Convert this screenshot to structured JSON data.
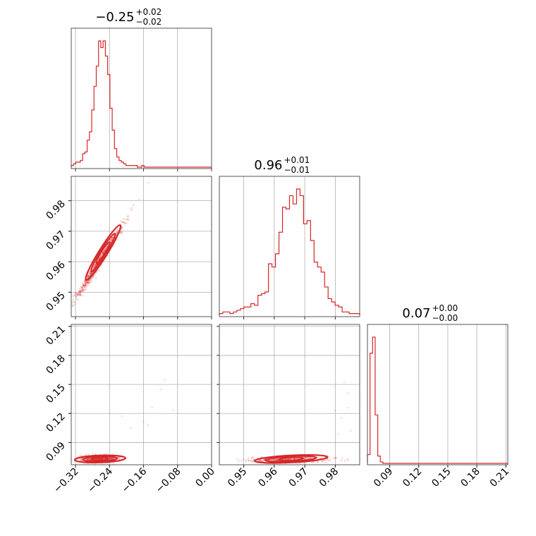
{
  "chart_data": {
    "type": "corner",
    "color": "#d62728",
    "parameters": [
      {
        "median": "−0.25",
        "plus": "+0.02",
        "minus": "−0.02",
        "lim": [
          -0.33,
          0.0
        ],
        "ticks": [
          -0.32,
          -0.24,
          -0.16,
          -0.08,
          0.0
        ],
        "tick_labels": [
          "−0.32",
          "−0.24",
          "−0.16",
          "−0.08",
          "0.00"
        ]
      },
      {
        "median": "0.96",
        "plus": "+0.01",
        "minus": "−0.01",
        "lim": [
          0.942,
          0.988
        ],
        "ticks": [
          0.95,
          0.96,
          0.97,
          0.98
        ],
        "tick_labels": [
          "0.95",
          "0.96",
          "0.97",
          "0.98"
        ]
      },
      {
        "median": "0.07",
        "plus": "+0.00",
        "minus": "−0.00",
        "lim": [
          0.067,
          0.212
        ],
        "ticks": [
          0.09,
          0.12,
          0.15,
          0.18,
          0.21
        ],
        "tick_labels": [
          "0.09",
          "0.12",
          "0.15",
          "0.18",
          "0.21"
        ]
      }
    ],
    "histograms": [
      {
        "param": 0,
        "bins": [
          -0.33,
          -0.0625
        ],
        "counts": [
          1,
          2,
          3,
          3,
          4,
          8,
          9,
          16,
          21,
          34,
          48,
          60,
          75,
          71,
          75,
          66,
          55,
          35,
          22,
          11,
          6,
          4,
          3,
          2,
          1,
          1,
          1,
          1,
          1,
          0,
          0,
          1,
          0,
          0,
          0,
          0,
          0,
          0,
          0,
          0,
          0,
          0,
          0,
          0,
          0,
          0,
          0,
          0,
          0,
          0
        ]
      },
      {
        "param": 1,
        "bins": [
          0.942,
          0.988
        ],
        "counts": [
          1,
          2,
          2,
          1,
          2,
          3,
          4,
          5,
          5,
          7,
          6,
          12,
          13,
          14,
          31,
          29,
          37,
          50,
          65,
          64,
          72,
          67,
          76,
          72,
          55,
          57,
          45,
          32,
          29,
          26,
          17,
          10,
          8,
          6,
          5,
          2,
          2,
          1,
          1,
          1
        ]
      },
      {
        "param": 2,
        "bins": [
          0.067,
          0.2
        ],
        "counts": [
          6,
          75,
          86,
          33,
          5,
          1,
          0,
          0,
          0,
          0,
          0,
          0,
          0,
          0,
          0,
          0,
          0,
          0,
          0,
          0,
          0,
          0,
          0,
          0,
          0,
          0,
          0,
          0,
          0,
          0,
          0,
          0,
          0,
          0,
          0,
          0,
          0,
          0,
          0,
          0,
          0,
          0,
          0,
          0,
          0,
          0,
          0,
          0,
          0,
          0
        ]
      }
    ],
    "scatter_outliers": {
      "p0_p2": [
        [
          -0.21,
          0.117
        ],
        [
          -0.16,
          0.111
        ],
        [
          -0.15,
          0.108
        ],
        [
          -0.11,
          0.155
        ],
        [
          -0.09,
          0.123
        ],
        [
          -0.14,
          0.126
        ],
        [
          -0.19,
          0.105
        ],
        [
          -0.12,
          0.145
        ]
      ],
      "p1_p2": [
        [
          0.983,
          0.152
        ],
        [
          0.984,
          0.126
        ],
        [
          0.985,
          0.102
        ],
        [
          0.981,
          0.099
        ],
        [
          0.982,
          0.115
        ],
        [
          0.984,
          0.141
        ],
        [
          0.98,
          0.123
        ]
      ]
    },
    "grid": true,
    "legend": "none"
  }
}
